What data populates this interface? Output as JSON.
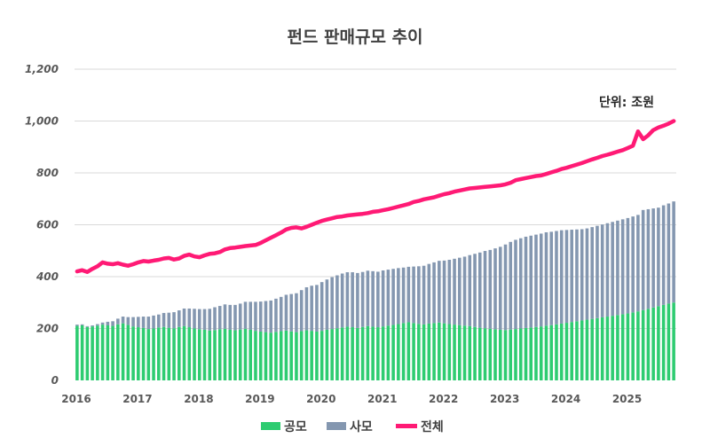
{
  "chart_data": {
    "type": "bar",
    "title": "펀드 판매규모  추이",
    "unit_label": "단위: 조원",
    "xlabel": "",
    "ylabel": "",
    "ylim": [
      0,
      1200
    ],
    "y_ticks": [
      "0",
      "200",
      "400",
      "600",
      "800",
      "1,000",
      "1,200"
    ],
    "x_ticks": [
      "2016",
      "2017",
      "2018",
      "2019",
      "2020",
      "2021",
      "2022",
      "2023",
      "2024",
      "2025"
    ],
    "grid": true,
    "legend_position": "bottom",
    "colors": {
      "public": "#2ecc71",
      "private": "#8497b0",
      "total": "#ff1a75"
    },
    "series": [
      {
        "name": "공모",
        "type": "bar",
        "values": [
          210,
          212,
          206,
          208,
          211,
          215,
          212,
          210,
          216,
          220,
          214,
          208,
          205,
          202,
          198,
          200,
          204,
          206,
          203,
          201,
          206,
          209,
          205,
          200,
          197,
          195,
          192,
          194,
          197,
          199,
          195,
          193,
          196,
          199,
          195,
          191,
          188,
          186,
          184,
          187,
          190,
          192,
          189,
          186,
          190,
          193,
          191,
          188,
          191,
          195,
          198,
          201,
          204,
          207,
          205,
          202,
          206,
          209,
          207,
          205,
          208,
          211,
          214,
          217,
          221,
          224,
          221,
          218,
          216,
          219,
          221,
          223,
          220,
          217,
          215,
          213,
          211,
          209,
          206,
          203,
          201,
          199,
          197,
          195,
          194,
          196,
          198,
          200,
          202,
          204,
          206,
          208,
          211,
          213,
          216,
          219,
          222,
          225,
          228,
          231,
          234,
          237,
          240,
          243,
          246,
          249,
          252,
          255,
          258,
          262,
          266,
          271,
          276,
          281,
          286,
          291,
          296,
          300
        ]
      },
      {
        "name": "사모",
        "type": "stacked_bar",
        "values": [
          5,
          4,
          3,
          4,
          6,
          8,
          14,
          18,
          22,
          26,
          30,
          36,
          40,
          44,
          48,
          50,
          50,
          54,
          58,
          62,
          64,
          68,
          72,
          76,
          78,
          80,
          84,
          88,
          90,
          94,
          96,
          98,
          100,
          104,
          108,
          112,
          116,
          120,
          124,
          128,
          132,
          138,
          144,
          150,
          158,
          166,
          174,
          180,
          188,
          194,
          200,
          204,
          208,
          210,
          212,
          212,
          212,
          214,
          214,
          214,
          216,
          216,
          216,
          216,
          214,
          214,
          218,
          222,
          226,
          230,
          234,
          238,
          242,
          248,
          254,
          260,
          266,
          274,
          282,
          290,
          298,
          304,
          312,
          320,
          330,
          338,
          344,
          348,
          352,
          354,
          356,
          358,
          360,
          360,
          360,
          360,
          358,
          356,
          354,
          352,
          352,
          354,
          356,
          358,
          360,
          362,
          364,
          366,
          368,
          370,
          372,
          386,
          384,
          382,
          380,
          384,
          386,
          390
        ]
      },
      {
        "name": "전체",
        "type": "line",
        "values": [
          420,
          425,
          418,
          430,
          440,
          455,
          450,
          448,
          452,
          446,
          442,
          448,
          455,
          460,
          458,
          462,
          465,
          470,
          472,
          466,
          470,
          480,
          485,
          478,
          475,
          482,
          488,
          490,
          495,
          505,
          510,
          512,
          515,
          518,
          520,
          522,
          530,
          540,
          550,
          560,
          570,
          582,
          588,
          590,
          586,
          592,
          600,
          608,
          615,
          620,
          625,
          630,
          632,
          636,
          638,
          640,
          642,
          645,
          650,
          652,
          656,
          660,
          665,
          670,
          675,
          680,
          688,
          692,
          698,
          702,
          706,
          712,
          718,
          722,
          728,
          732,
          736,
          740,
          742,
          744,
          746,
          748,
          750,
          752,
          756,
          762,
          772,
          776,
          780,
          784,
          788,
          790,
          796,
          802,
          808,
          815,
          820,
          826,
          832,
          838,
          845,
          852,
          858,
          865,
          870,
          876,
          882,
          888,
          896,
          905,
          960,
          930,
          945,
          965,
          975,
          982,
          990,
          1000
        ]
      }
    ]
  }
}
